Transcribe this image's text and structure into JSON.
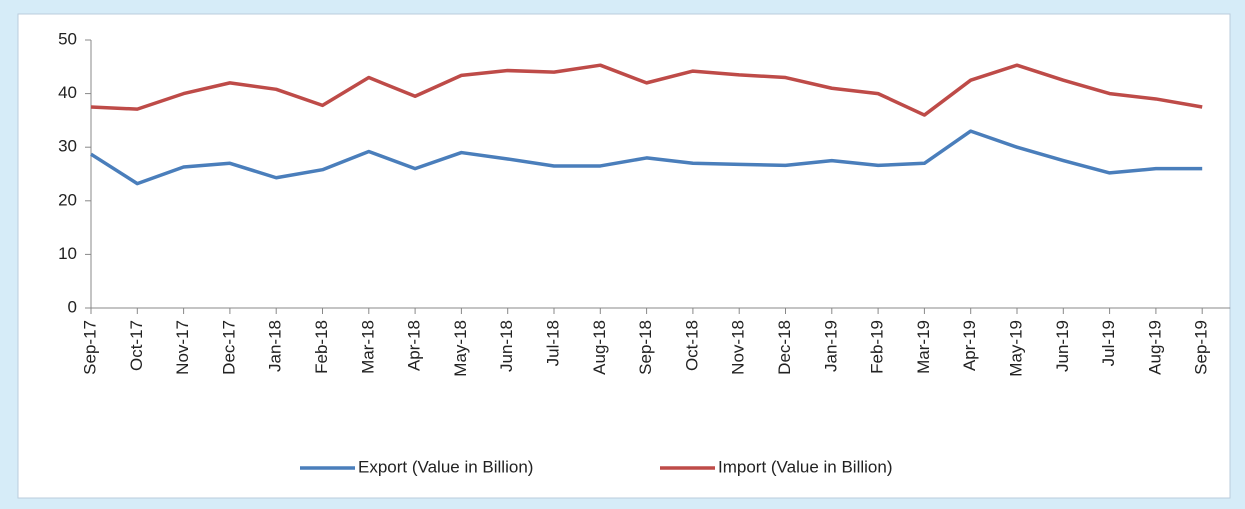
{
  "chart_data": {
    "type": "line",
    "categories": [
      "Sep-17",
      "Oct-17",
      "Nov-17",
      "Dec-17",
      "Jan-18",
      "Feb-18",
      "Mar-18",
      "Apr-18",
      "May-18",
      "Jun-18",
      "Jul-18",
      "Aug-18",
      "Sep-18",
      "Oct-18",
      "Nov-18",
      "Dec-18",
      "Jan-19",
      "Feb-19",
      "Mar-19",
      "Apr-19",
      "May-19",
      "Jun-19",
      "Jul-19",
      "Aug-19",
      "Sep-19"
    ],
    "series": [
      {
        "name": "Export (Value in Billion)",
        "color": "#4a7ebb",
        "values": [
          28.7,
          23.2,
          26.3,
          27,
          24.3,
          25.8,
          29.2,
          26,
          29,
          27.8,
          26.5,
          26.5,
          28,
          27,
          26.8,
          26.6,
          27.5,
          26.6,
          27,
          33,
          30,
          27.5,
          25.2,
          26,
          26
        ]
      },
      {
        "name": "Import (Value in Billion)",
        "color": "#be4b48",
        "values": [
          37.5,
          37.1,
          40,
          42,
          40.8,
          37.8,
          43,
          39.5,
          43.4,
          44.3,
          44,
          45.3,
          42,
          44.2,
          43.5,
          43,
          41,
          40,
          36,
          42.5,
          45.3,
          42.5,
          40,
          39,
          37.5
        ]
      }
    ],
    "ylim": [
      0,
      50
    ],
    "yticks": [
      0,
      10,
      20,
      30,
      40,
      50
    ],
    "legend": "bottom"
  }
}
